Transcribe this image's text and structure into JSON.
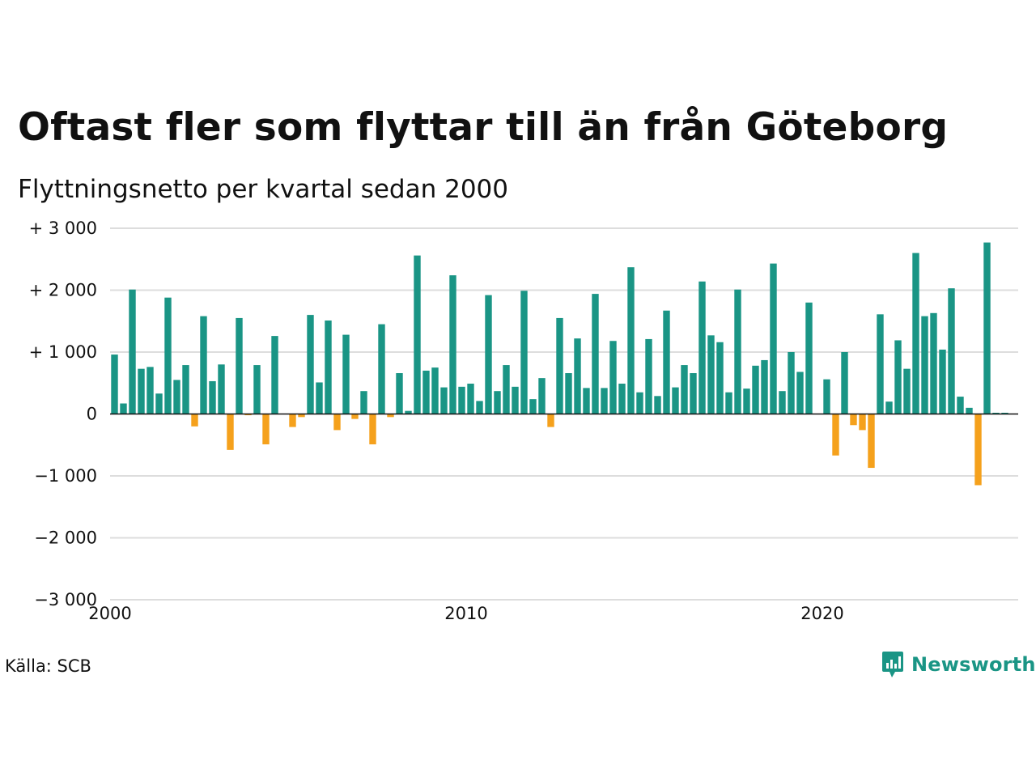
{
  "colors": {
    "positive": "#1a9585",
    "negative": "#f5a11c",
    "grid": "#dddddd",
    "zero_line": "#111111",
    "brand": "#1a9585"
  },
  "source": "Källa: SCB",
  "brand": {
    "name": "Newsworthy",
    "icon": "chart-bubble-icon"
  },
  "chart_data": {
    "type": "bar",
    "title": "Oftast fler som flyttar till än från Göteborg",
    "subtitle": "Flyttningsnetto per kvartal sedan 2000",
    "xlabel": "",
    "ylabel": "",
    "x_start_year": 2000,
    "x_range": [
      2000,
      2025.5
    ],
    "ylim": [
      -3000,
      3000
    ],
    "yticks": [
      3000,
      2000,
      1000,
      0,
      -1000,
      -2000,
      -3000
    ],
    "ytick_labels": [
      "+ 3 000",
      "+ 2 000",
      "+ 1 000",
      "0",
      "−1 000",
      "−2 000",
      "−3 000"
    ],
    "xticks": [
      2000,
      2010,
      2020
    ],
    "xtick_labels": [
      "2000",
      "2010",
      "2020"
    ],
    "grid": true,
    "values": [
      960,
      170,
      2010,
      730,
      760,
      330,
      1880,
      550,
      790,
      -200,
      1580,
      530,
      800,
      -580,
      1550,
      -20,
      790,
      -490,
      1260,
      0,
      -210,
      -50,
      1600,
      510,
      1510,
      -260,
      1280,
      -80,
      370,
      -490,
      1450,
      -50,
      660,
      50,
      2560,
      700,
      750,
      430,
      2240,
      440,
      490,
      210,
      1920,
      370,
      790,
      440,
      1990,
      240,
      580,
      -210,
      1550,
      660,
      1220,
      420,
      1940,
      420,
      1180,
      490,
      2370,
      350,
      1210,
      290,
      1670,
      430,
      790,
      660,
      2140,
      1270,
      1160,
      350,
      2010,
      410,
      780,
      870,
      2430,
      370,
      1000,
      680,
      1800,
      0,
      560,
      -670,
      1000,
      -180,
      -260,
      -870,
      1610,
      200,
      1190,
      730,
      2600,
      1580,
      1630,
      1040,
      2030,
      280,
      100,
      -1150,
      2770,
      20,
      20
    ]
  }
}
